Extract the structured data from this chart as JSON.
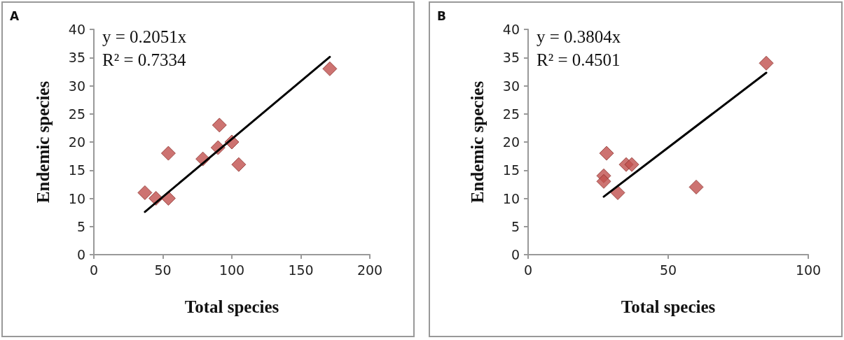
{
  "chart_data": [
    {
      "type": "scatter",
      "title": "A",
      "xlabel": "Total species",
      "ylabel": "Endemic species",
      "xlim": [
        0,
        200
      ],
      "xticks": [
        0,
        50,
        100,
        150,
        200
      ],
      "ylim": [
        0,
        40
      ],
      "yticks": [
        0,
        5,
        10,
        15,
        20,
        25,
        30,
        35,
        40
      ],
      "grid": false,
      "annotations": [
        "y = 0.2051x",
        "R² = 0.7334"
      ],
      "series": [
        {
          "marker": "diamond",
          "color": "#c0504d",
          "x": [
            37,
            45,
            54,
            54,
            79,
            90,
            91,
            100,
            105,
            171
          ],
          "values": [
            11,
            10,
            10,
            18,
            17,
            19,
            23,
            20,
            16,
            33
          ]
        },
        {
          "type": "line",
          "marker": "none",
          "line_style": "solid",
          "color": "#000000",
          "x": [
            37,
            171
          ],
          "values": [
            7.6,
            35.1
          ]
        }
      ]
    },
    {
      "type": "scatter",
      "title": "B",
      "xlabel": "Total species",
      "ylabel": "Endemic species",
      "xlim": [
        0,
        100
      ],
      "xticks": [
        0,
        50,
        100
      ],
      "ylim": [
        0,
        40
      ],
      "yticks": [
        0,
        5,
        10,
        15,
        20,
        25,
        30,
        35,
        40
      ],
      "grid": false,
      "annotations": [
        "y = 0.3804x",
        "R² = 0.4501"
      ],
      "series": [
        {
          "marker": "diamond",
          "color": "#c0504d",
          "x": [
            28,
            27,
            27,
            32,
            35,
            37,
            60,
            85
          ],
          "values": [
            18,
            14,
            13,
            11,
            16,
            16,
            12,
            34
          ]
        },
        {
          "type": "line",
          "marker": "none",
          "line_style": "solid",
          "color": "#000000",
          "x": [
            27,
            85
          ],
          "values": [
            10.3,
            32.3
          ]
        }
      ]
    }
  ]
}
